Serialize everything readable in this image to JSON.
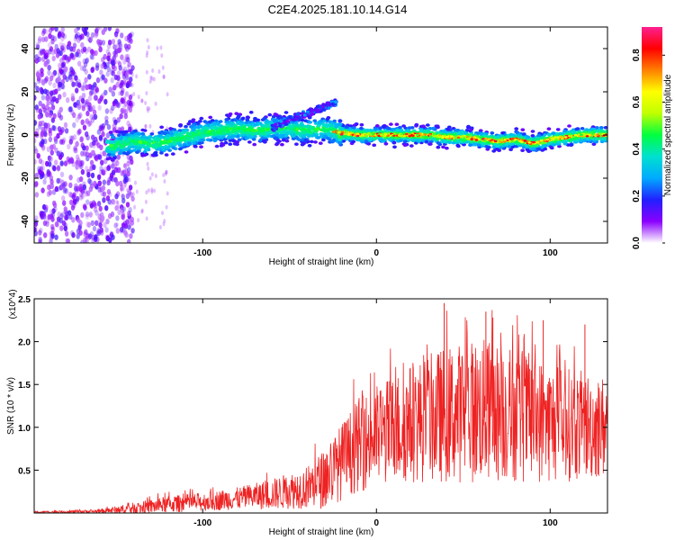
{
  "title": "C2E4.2025.181.10.14.G14",
  "chart_data": [
    {
      "type": "heatmap",
      "xlabel": "Height of straight line (km)",
      "ylabel": "Frequency (Hz)",
      "xlim": [
        -197,
        133
      ],
      "ylim": [
        -50,
        50
      ],
      "x_ticks": [
        -100,
        0,
        100
      ],
      "y_ticks": [
        -40,
        -20,
        0,
        20,
        40
      ],
      "colorbar": {
        "label": "Normalized spectral amplitude",
        "range": [
          0,
          0.92
        ],
        "ticks": [
          0.0,
          0.2,
          0.4,
          0.6,
          0.8
        ],
        "tick_labels": [
          "0.0",
          "0.2",
          "0.4",
          "0.6",
          "0.8"
        ],
        "colors": [
          "#ffffff",
          "#8a00ff",
          "#2020ff",
          "#00aaff",
          "#00e0d0",
          "#00ff40",
          "#c0ff00",
          "#ffff00",
          "#ff8000",
          "#ff0000",
          "#ff2090"
        ]
      },
      "ridge": [
        {
          "x": -150,
          "y": -5
        },
        {
          "x": -140,
          "y": -3
        },
        {
          "x": -130,
          "y": -4
        },
        {
          "x": -120,
          "y": -3
        },
        {
          "x": -110,
          "y": -1
        },
        {
          "x": -100,
          "y": 1
        },
        {
          "x": -90,
          "y": 2
        },
        {
          "x": -80,
          "y": 3
        },
        {
          "x": -70,
          "y": 2
        },
        {
          "x": -60,
          "y": 3
        },
        {
          "x": -50,
          "y": 3
        },
        {
          "x": -40,
          "y": 2
        },
        {
          "x": -30,
          "y": 3
        },
        {
          "x": -22,
          "y": 1
        },
        {
          "x": -10,
          "y": 0
        },
        {
          "x": 0,
          "y": 0
        },
        {
          "x": 10,
          "y": 0
        },
        {
          "x": 20,
          "y": 0
        },
        {
          "x": 30,
          "y": 0
        },
        {
          "x": 40,
          "y": -1
        },
        {
          "x": 50,
          "y": -1
        },
        {
          "x": 60,
          "y": -2
        },
        {
          "x": 70,
          "y": -3
        },
        {
          "x": 80,
          "y": -2
        },
        {
          "x": 90,
          "y": -4
        },
        {
          "x": 100,
          "y": -2
        },
        {
          "x": 110,
          "y": -1
        },
        {
          "x": 120,
          "y": 0
        },
        {
          "x": 133,
          "y": 0
        }
      ],
      "upper_branch": [
        {
          "x": -60,
          "y": 3
        },
        {
          "x": -50,
          "y": 7
        },
        {
          "x": -40,
          "y": 10
        },
        {
          "x": -30,
          "y": 13
        },
        {
          "x": -23,
          "y": 15
        }
      ]
    },
    {
      "type": "line",
      "xlabel": "Height of straight line (km)",
      "ylabel": "SNR (10 * v/v)",
      "y_multiplier": "(x10^4)",
      "xlim": [
        -197,
        133
      ],
      "ylim": [
        0,
        25000
      ],
      "x_ticks": [
        -100,
        0,
        100
      ],
      "y_ticks": [
        5000,
        10000,
        15000,
        20000,
        25000
      ],
      "y_tick_labels": [
        "0.5",
        "1.0",
        "1.5",
        "2.0",
        "2.5"
      ],
      "color": "#ee2222",
      "envelope": [
        {
          "x": -197,
          "mean": 100,
          "spread": 100
        },
        {
          "x": -160,
          "mean": 200,
          "spread": 200
        },
        {
          "x": -140,
          "mean": 500,
          "spread": 700
        },
        {
          "x": -120,
          "mean": 1000,
          "spread": 1000
        },
        {
          "x": -100,
          "mean": 1300,
          "spread": 1100
        },
        {
          "x": -80,
          "mean": 1700,
          "spread": 1300
        },
        {
          "x": -60,
          "mean": 2200,
          "spread": 1800
        },
        {
          "x": -40,
          "mean": 3000,
          "spread": 2500
        },
        {
          "x": -30,
          "mean": 4000,
          "spread": 3500
        },
        {
          "x": -20,
          "mean": 6000,
          "spread": 4500
        },
        {
          "x": -10,
          "mean": 8000,
          "spread": 5500
        },
        {
          "x": 0,
          "mean": 9000,
          "spread": 6000
        },
        {
          "x": 20,
          "mean": 10500,
          "spread": 7000
        },
        {
          "x": 40,
          "mean": 11500,
          "spread": 8000
        },
        {
          "x": 60,
          "mean": 12000,
          "spread": 8500
        },
        {
          "x": 80,
          "mean": 11500,
          "spread": 8000
        },
        {
          "x": 100,
          "mean": 10500,
          "spread": 7000
        },
        {
          "x": 133,
          "mean": 10000,
          "spread": 6000
        }
      ],
      "peaks": [
        {
          "x": 39,
          "y": 24500
        },
        {
          "x": 63,
          "y": 23500
        },
        {
          "x": 67,
          "y": 22800
        },
        {
          "x": 96,
          "y": 22500
        },
        {
          "x": 120,
          "y": 22000
        }
      ]
    }
  ]
}
